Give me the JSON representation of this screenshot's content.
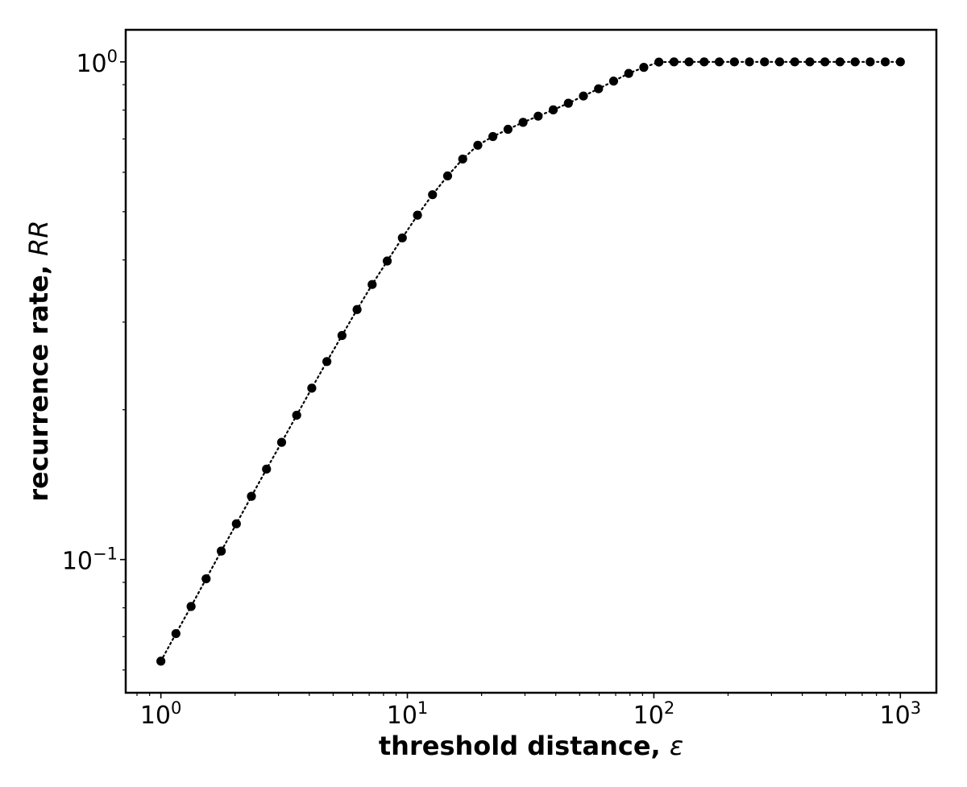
{
  "chart_data": {
    "type": "line",
    "marker": "circle",
    "line_style": "dotted",
    "color": "#000000",
    "x_scale": "log",
    "y_scale": "log",
    "xlim": [
      0.72,
      1400
    ],
    "ylim": [
      0.054,
      1.16
    ],
    "xlabel": {
      "text": "threshold distance, ",
      "symbol": "ε"
    },
    "ylabel": {
      "text": "recurrence rate, ",
      "symbol": "RR"
    },
    "x_ticks": [
      {
        "base": "10",
        "exp": "0"
      },
      {
        "base": "10",
        "exp": "1"
      },
      {
        "base": "10",
        "exp": "2"
      },
      {
        "base": "10",
        "exp": "3"
      }
    ],
    "y_ticks": [
      {
        "base": "10",
        "exp": "−1"
      },
      {
        "base": "10",
        "exp": "0"
      }
    ],
    "series": [
      {
        "x": [
          1.0,
          1.151,
          1.326,
          1.526,
          1.758,
          2.024,
          2.33,
          2.683,
          3.089,
          3.556,
          4.095,
          4.715,
          5.429,
          6.251,
          7.197,
          8.286,
          9.541,
          10.99,
          12.65,
          14.56,
          16.77,
          19.31,
          22.23,
          25.6,
          29.47,
          33.93,
          39.07,
          44.99,
          51.79,
          59.64,
          68.66,
          79.06,
          91.03,
          104.8,
          120.7,
          138.9,
          160.0,
          184.2,
          212.1,
          244.2,
          281.2,
          323.7,
          372.8,
          429.2,
          494.2,
          569.0,
          655.1,
          754.3,
          868.5,
          1000.0
        ],
        "y": [
          0.0625,
          0.071,
          0.0805,
          0.0915,
          0.104,
          0.118,
          0.134,
          0.152,
          0.172,
          0.195,
          0.221,
          0.25,
          0.282,
          0.318,
          0.357,
          0.398,
          0.443,
          0.492,
          0.541,
          0.59,
          0.638,
          0.68,
          0.708,
          0.732,
          0.756,
          0.778,
          0.801,
          0.826,
          0.854,
          0.883,
          0.915,
          0.948,
          0.975,
          0.999,
          1.0,
          1.0,
          1.0,
          1.0,
          1.0,
          1.0,
          1.0,
          1.0,
          1.0,
          1.0,
          1.0,
          1.0,
          1.0,
          1.0,
          1.0,
          1.0
        ]
      }
    ]
  }
}
